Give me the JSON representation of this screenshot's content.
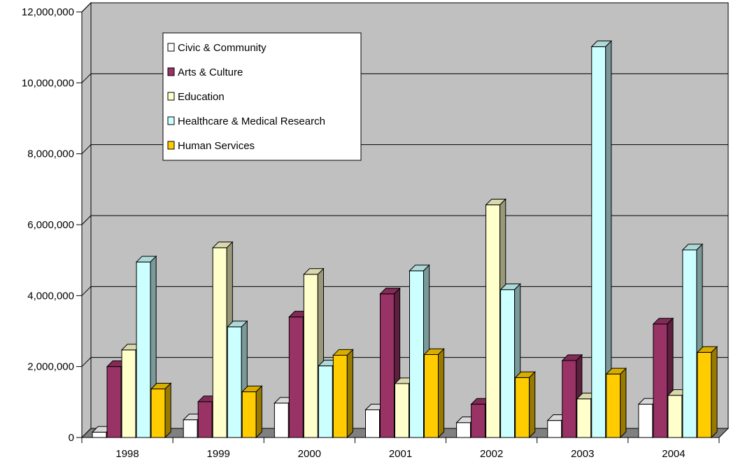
{
  "chart_data": {
    "type": "bar",
    "style": "3d-clustered-column",
    "categories": [
      "1998",
      "1999",
      "2000",
      "2001",
      "2002",
      "2003",
      "2004"
    ],
    "series": [
      {
        "name": "Civic & Community",
        "color": "#ffffff",
        "values": [
          150000,
          500000,
          970000,
          780000,
          420000,
          480000,
          940000
        ]
      },
      {
        "name": "Arts & Culture",
        "color": "#993366",
        "values": [
          2000000,
          1010000,
          3400000,
          4050000,
          940000,
          2170000,
          3200000
        ]
      },
      {
        "name": "Education",
        "color": "#ffffcc",
        "values": [
          2470000,
          5350000,
          4600000,
          1520000,
          6560000,
          1090000,
          1190000
        ]
      },
      {
        "name": "Healthcare & Medical Research",
        "color": "#ccffff",
        "values": [
          4950000,
          3120000,
          2020000,
          4700000,
          4170000,
          11020000,
          5290000
        ]
      },
      {
        "name": "Human Services",
        "color": "#ffcc00",
        "values": [
          1370000,
          1290000,
          2320000,
          2340000,
          1690000,
          1790000,
          2400000
        ]
      }
    ],
    "ylim": [
      0,
      12000000
    ],
    "yticks": [
      0,
      2000000,
      4000000,
      6000000,
      8000000,
      10000000,
      12000000
    ],
    "ytick_labels": [
      "0",
      "2,000,000",
      "4,000,000",
      "6,000,000",
      "8,000,000",
      "10,000,000",
      "12,000,000"
    ],
    "grid": true,
    "legend_position": "top-left inside plot",
    "colors": {
      "wall": "#c0c0c0",
      "floor": "#808080",
      "gridline": "#000000"
    }
  }
}
